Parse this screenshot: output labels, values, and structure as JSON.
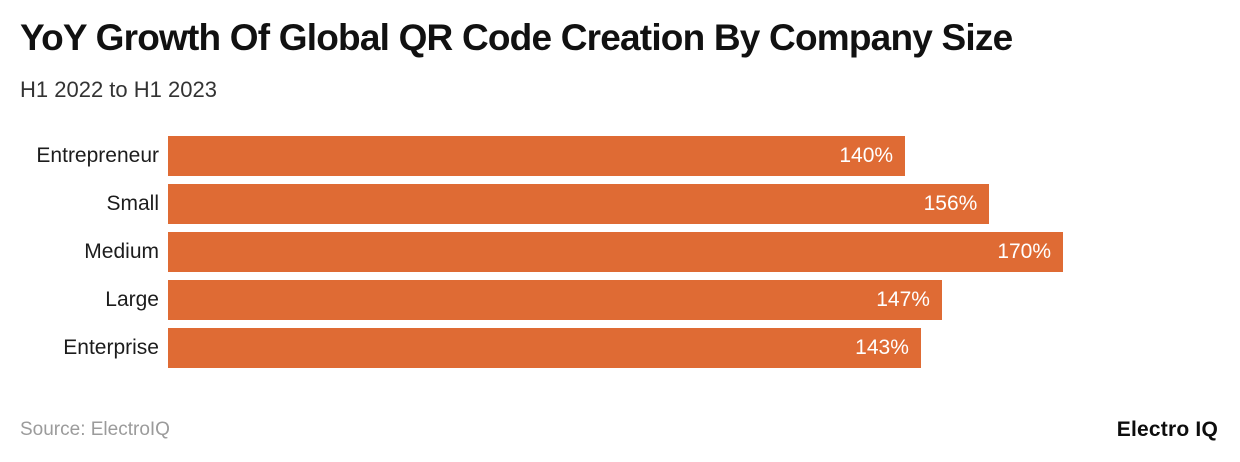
{
  "header": {
    "title": "YoY Growth Of Global QR Code Creation By Company Size",
    "subtitle": "H1 2022 to H1 2023"
  },
  "chart_data": {
    "type": "bar",
    "orientation": "horizontal",
    "title": "YoY Growth Of Global QR Code Creation By Company Size",
    "subtitle": "H1 2022 to H1 2023",
    "categories": [
      "Entrepreneur",
      "Small",
      "Medium",
      "Large",
      "Enterprise"
    ],
    "values": [
      140,
      156,
      170,
      147,
      143
    ],
    "value_labels": [
      "140%",
      "156%",
      "170%",
      "147%",
      "143%"
    ],
    "xlabel": "",
    "ylabel": "",
    "xlim": [
      0,
      200
    ],
    "grid": false,
    "legend": false,
    "bar_color": "#DF6B34",
    "value_label_color": "#FFFFFF"
  },
  "footer": {
    "source": "Source: ElectroIQ",
    "brand": "Electro IQ"
  }
}
